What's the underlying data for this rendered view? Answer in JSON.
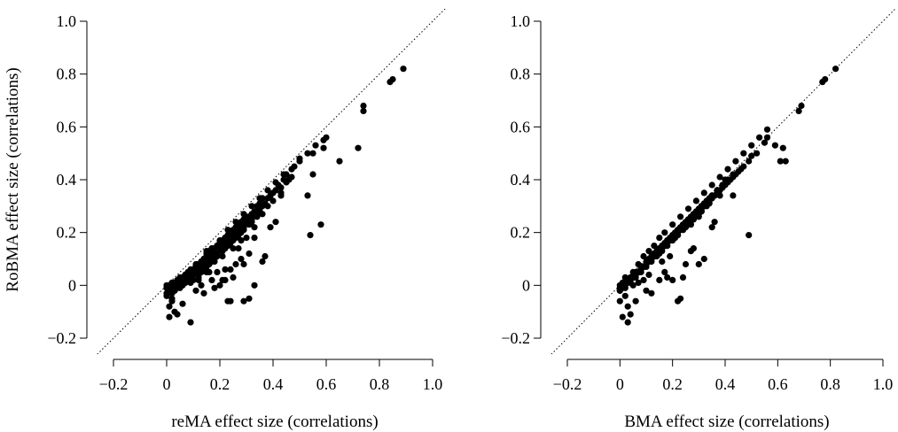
{
  "chart_data": [
    {
      "type": "scatter",
      "title": "",
      "xlabel": "reMA effect size (correlations)",
      "ylabel": "RoBMA effect size (correlations)",
      "xlim": [
        -0.2,
        1.0
      ],
      "ylim": [
        -0.2,
        1.0
      ],
      "xticks": [
        "−0.2",
        "0",
        "0.2",
        "0.4",
        "0.6",
        "0.8",
        "1.0"
      ],
      "yticks": [
        "−0.2",
        "0",
        "0.2",
        "0.4",
        "0.6",
        "0.8",
        "1.0"
      ],
      "reference_line": "identity (dotted)",
      "grid": false,
      "legend": "none",
      "marker_color": "#000000",
      "x": [
        0.89,
        0.85,
        0.84,
        0.74,
        0.74,
        0.72,
        0.6,
        0.59,
        0.65,
        0.55,
        0.55,
        0.5,
        0.54,
        0.48,
        0.47,
        0.45,
        0.45,
        0.44,
        0.43,
        0.43,
        0.42,
        0.41,
        0.4,
        0.4,
        0.39,
        0.38,
        0.37,
        0.36,
        0.35,
        0.34,
        0.33,
        0.32,
        0.3,
        0.29,
        0.28,
        0.27,
        0.26,
        0.25,
        0.24,
        0.23,
        0.22,
        0.21,
        0.2,
        0.19,
        0.18,
        0.17,
        0.16,
        0.15,
        0.14,
        0.13,
        0.12,
        0.11,
        0.1,
        0.09,
        0.08,
        0.07,
        0.06,
        0.05,
        0.04,
        0.03,
        0.02,
        0.01,
        0.0,
        0.35,
        0.34,
        0.32,
        0.31,
        0.3,
        0.29,
        0.27,
        0.26,
        0.25,
        0.24,
        0.22,
        0.21,
        0.2,
        0.19,
        0.18,
        0.17,
        0.16,
        0.15,
        0.14,
        0.13,
        0.12,
        0.11,
        0.1,
        0.09,
        0.08,
        0.07,
        0.06,
        0.05,
        0.04,
        0.03,
        0.02,
        0.33,
        0.31,
        0.29,
        0.28,
        0.26,
        0.25,
        0.23,
        0.22,
        0.2,
        0.19,
        0.17,
        0.16,
        0.15,
        0.14,
        0.13,
        0.12,
        0.11,
        0.1,
        0.09,
        0.08,
        0.07,
        0.06,
        0.05,
        0.04,
        0.03,
        0.02,
        0.01,
        0.3,
        0.28,
        0.27,
        0.25,
        0.24,
        0.22,
        0.21,
        0.2,
        0.18,
        0.17,
        0.16,
        0.15,
        0.14,
        0.13,
        0.12,
        0.11,
        0.1,
        0.09,
        0.08,
        0.07,
        0.06,
        0.05,
        0.04,
        0.03,
        0.02,
        0.01,
        0.0,
        0.58,
        0.53,
        0.46,
        0.43,
        0.41,
        0.39,
        0.37,
        0.36,
        0.36,
        0.33,
        0.31,
        0.29,
        0.28,
        0.27,
        0.26,
        0.25,
        0.24,
        0.23,
        0.22,
        0.21,
        0.2,
        0.19,
        0.18,
        0.17,
        0.16,
        0.15,
        0.14,
        0.13,
        0.12,
        0.11,
        0.1,
        0.09,
        0.08,
        0.07,
        0.06,
        0.05,
        0.04,
        0.03,
        0.02,
        0.01,
        0.0,
        0.0,
        0.01,
        0.02,
        0.03,
        0.05,
        0.07,
        0.09,
        0.11,
        0.13,
        0.15,
        0.17,
        0.2,
        0.23,
        0.26,
        0.29,
        0.32,
        0.35,
        0.38,
        0.41,
        0.44,
        0.47,
        0.5,
        0.53,
        0.56,
        0.59,
        0.35,
        0.32,
        0.29,
        0.26,
        0.23,
        0.2,
        0.17,
        0.14,
        0.11,
        0.08,
        0.05,
        0.02,
        0.38,
        0.33,
        0.3,
        0.28,
        0.25,
        0.22,
        0.19,
        0.16,
        0.13,
        0.1,
        0.07,
        0.04,
        0.01,
        0.36,
        0.33,
        0.31,
        0.29,
        0.27,
        0.24,
        0.21,
        0.18,
        0.15,
        0.12,
        0.09,
        0.06,
        0.03,
        0.12,
        0.13,
        0.14,
        0.15,
        0.16,
        0.17,
        0.18,
        0.19,
        0.21,
        0.22,
        0.23,
        0.24,
        0.25,
        0.26,
        0.27,
        0.28,
        0.29,
        0.31,
        0.32,
        0.34
      ],
      "y": [
        0.82,
        0.78,
        0.77,
        0.68,
        0.66,
        0.52,
        0.56,
        0.52,
        0.47,
        0.5,
        0.42,
        0.47,
        0.19,
        0.45,
        0.41,
        0.42,
        0.39,
        0.4,
        0.37,
        0.34,
        0.38,
        0.36,
        0.35,
        0.32,
        0.34,
        0.33,
        0.31,
        0.3,
        0.29,
        0.28,
        0.27,
        0.26,
        0.26,
        0.25,
        0.24,
        0.23,
        0.22,
        0.21,
        0.2,
        0.19,
        0.18,
        0.17,
        0.16,
        0.15,
        0.14,
        0.13,
        0.12,
        0.11,
        0.1,
        0.09,
        0.08,
        0.07,
        0.06,
        0.05,
        0.04,
        0.03,
        0.02,
        0.02,
        0.01,
        0.01,
        0.0,
        0.0,
        0.0,
        0.31,
        0.3,
        0.27,
        0.26,
        0.25,
        0.24,
        0.22,
        0.21,
        0.2,
        0.19,
        0.18,
        0.17,
        0.16,
        0.15,
        0.14,
        0.13,
        0.12,
        0.11,
        0.1,
        0.09,
        0.08,
        0.07,
        0.06,
        0.05,
        0.04,
        0.03,
        0.02,
        0.01,
        0.01,
        0.0,
        0.0,
        0.28,
        0.26,
        0.24,
        0.23,
        0.21,
        0.2,
        0.19,
        0.17,
        0.16,
        0.15,
        0.14,
        0.13,
        0.11,
        0.1,
        0.09,
        0.08,
        0.07,
        0.06,
        0.05,
        0.04,
        0.04,
        0.03,
        0.02,
        0.01,
        0.0,
        0.0,
        -0.01,
        0.24,
        0.22,
        0.21,
        0.19,
        0.18,
        0.16,
        0.15,
        0.14,
        0.12,
        0.11,
        0.1,
        0.09,
        0.08,
        0.07,
        0.06,
        0.05,
        0.04,
        0.03,
        0.02,
        0.01,
        0.0,
        -0.01,
        -0.01,
        -0.02,
        -0.03,
        -0.02,
        -0.01,
        0.23,
        0.34,
        0.4,
        0.35,
        0.24,
        0.22,
        0.11,
        0.09,
        0.33,
        0.0,
        -0.05,
        -0.06,
        0.1,
        0.14,
        0.08,
        0.03,
        -0.06,
        -0.06,
        0.02,
        0.11,
        0.0,
        0.05,
        0.09,
        0.02,
        0.05,
        0.12,
        -0.03,
        0.0,
        0.04,
        -0.02,
        0.02,
        0.06,
        0.04,
        0.01,
        -0.07,
        0.0,
        -0.11,
        -0.1,
        -0.05,
        -0.08,
        -0.04,
        -0.03,
        -0.12,
        -0.06,
        -0.02,
        0.01,
        0.03,
        -0.14,
        0.06,
        0.08,
        0.13,
        0.14,
        0.17,
        0.21,
        0.24,
        0.27,
        0.3,
        0.33,
        0.36,
        0.39,
        0.42,
        0.44,
        0.48,
        0.5,
        0.53,
        0.55,
        0.28,
        0.25,
        0.22,
        0.2,
        0.17,
        0.15,
        0.12,
        0.1,
        0.08,
        0.05,
        0.03,
        0.01,
        0.3,
        0.22,
        0.18,
        0.17,
        0.14,
        0.06,
        0.12,
        0.09,
        0.07,
        0.05,
        0.04,
        0.02,
        0.0,
        0.27,
        0.18,
        0.12,
        0.08,
        0.2,
        0.06,
        0.02,
        -0.01,
        0.05,
        0.02,
        0.01,
        0.0,
        -0.01,
        0.03,
        0.05,
        0.06,
        0.07,
        0.08,
        0.09,
        0.1,
        0.11,
        0.13,
        0.14,
        0.15,
        0.16,
        0.17,
        0.18,
        0.19,
        0.2,
        0.21,
        0.23,
        0.24,
        0.26
      ]
    },
    {
      "type": "scatter",
      "title": "",
      "xlabel": "BMA effect size (correlations)",
      "ylabel": "",
      "xlim": [
        -0.2,
        1.0
      ],
      "ylim": [
        -0.2,
        1.0
      ],
      "xticks": [
        "−0.2",
        "0",
        "0.2",
        "0.4",
        "0.6",
        "0.8",
        "1.0"
      ],
      "yticks": [
        "−0.2",
        "0",
        "0.2",
        "0.4",
        "0.6",
        "0.8",
        "1.0"
      ],
      "reference_line": "identity (dotted)",
      "grid": false,
      "legend": "none",
      "marker_color": "#000000",
      "x": [
        0.82,
        0.78,
        0.77,
        0.69,
        0.68,
        0.62,
        0.56,
        0.55,
        0.61,
        0.52,
        0.5,
        0.49,
        0.47,
        0.46,
        0.45,
        0.44,
        0.43,
        0.42,
        0.41,
        0.4,
        0.39,
        0.38,
        0.37,
        0.36,
        0.35,
        0.34,
        0.33,
        0.32,
        0.31,
        0.3,
        0.29,
        0.28,
        0.27,
        0.26,
        0.25,
        0.24,
        0.23,
        0.22,
        0.21,
        0.2,
        0.19,
        0.18,
        0.17,
        0.16,
        0.15,
        0.14,
        0.13,
        0.12,
        0.11,
        0.1,
        0.09,
        0.08,
        0.07,
        0.06,
        0.05,
        0.04,
        0.03,
        0.02,
        0.01,
        0.0,
        0.36,
        0.34,
        0.32,
        0.3,
        0.28,
        0.26,
        0.24,
        0.22,
        0.2,
        0.18,
        0.16,
        0.14,
        0.12,
        0.1,
        0.08,
        0.06,
        0.04,
        0.02,
        0.0,
        0.33,
        0.31,
        0.29,
        0.27,
        0.25,
        0.23,
        0.21,
        0.19,
        0.17,
        0.15,
        0.13,
        0.11,
        0.09,
        0.07,
        0.05,
        0.03,
        0.01,
        0.3,
        0.28,
        0.26,
        0.24,
        0.22,
        0.2,
        0.18,
        0.16,
        0.14,
        0.12,
        0.1,
        0.08,
        0.06,
        0.04,
        0.02,
        0.49,
        0.43,
        0.4,
        0.38,
        0.36,
        0.35,
        0.32,
        0.3,
        0.28,
        0.27,
        0.25,
        0.24,
        0.23,
        0.22,
        0.2,
        0.19,
        0.18,
        0.17,
        0.16,
        0.15,
        0.13,
        0.12,
        0.11,
        0.1,
        0.09,
        0.08,
        0.07,
        0.06,
        0.05,
        0.04,
        0.03,
        0.02,
        0.01,
        0.0,
        0.0,
        0.01,
        0.02,
        0.03,
        0.05,
        0.07,
        0.09,
        0.11,
        0.13,
        0.15,
        0.17,
        0.2,
        0.23,
        0.26,
        0.29,
        0.32,
        0.35,
        0.38,
        0.41,
        0.44,
        0.47,
        0.5,
        0.53,
        0.56,
        0.59,
        0.63,
        0.34,
        0.31,
        0.28,
        0.25,
        0.22,
        0.19,
        0.16,
        0.13,
        0.1,
        0.07,
        0.04,
        0.01,
        0.12,
        0.14,
        0.16,
        0.18,
        0.2,
        0.22,
        0.24,
        0.26,
        0.28,
        0.3,
        0.32,
        0.34,
        0.37,
        0.39,
        0.41,
        0.43,
        0.3,
        0.27,
        0.24,
        0.21,
        0.18,
        0.15,
        0.12,
        0.09,
        0.06,
        0.03,
        0.0,
        0.02,
        0.04,
        0.06,
        0.08,
        0.1,
        0.12,
        0.14,
        0.16,
        0.18,
        0.2,
        0.22,
        0.24,
        0.26,
        0.28,
        0.31,
        0.33,
        0.35,
        0.37,
        0.39,
        0.11,
        0.13,
        0.15,
        0.17,
        0.19,
        0.21,
        0.23,
        0.25,
        0.27,
        0.29,
        0.31,
        0.33,
        0.35,
        0.37
      ],
      "y": [
        0.82,
        0.78,
        0.77,
        0.68,
        0.66,
        0.52,
        0.56,
        0.54,
        0.47,
        0.5,
        0.49,
        0.47,
        0.45,
        0.44,
        0.43,
        0.42,
        0.41,
        0.4,
        0.39,
        0.38,
        0.37,
        0.36,
        0.35,
        0.34,
        0.33,
        0.32,
        0.31,
        0.3,
        0.29,
        0.28,
        0.27,
        0.26,
        0.25,
        0.24,
        0.23,
        0.22,
        0.21,
        0.2,
        0.19,
        0.18,
        0.17,
        0.16,
        0.15,
        0.14,
        0.13,
        0.12,
        0.11,
        0.1,
        0.09,
        0.08,
        0.07,
        0.06,
        0.05,
        0.04,
        0.03,
        0.02,
        0.02,
        0.01,
        0.0,
        -0.01,
        0.34,
        0.32,
        0.3,
        0.28,
        0.26,
        0.24,
        0.22,
        0.2,
        0.18,
        0.16,
        0.14,
        0.12,
        0.1,
        0.08,
        0.06,
        0.04,
        0.02,
        0.0,
        -0.02,
        0.3,
        0.28,
        0.27,
        0.25,
        0.23,
        0.21,
        0.19,
        0.17,
        0.15,
        0.13,
        0.11,
        0.09,
        0.07,
        0.05,
        0.03,
        0.01,
        -0.01,
        0.27,
        0.25,
        0.23,
        0.21,
        0.19,
        0.17,
        0.15,
        0.13,
        0.11,
        0.09,
        0.07,
        0.05,
        0.03,
        0.01,
        -0.01,
        0.19,
        0.34,
        0.4,
        0.34,
        0.24,
        0.22,
        0.1,
        0.08,
        0.14,
        0.13,
        0.08,
        0.03,
        -0.05,
        -0.06,
        0.02,
        0.11,
        0.03,
        0.05,
        0.09,
        0.02,
        0.12,
        -0.03,
        0.04,
        -0.02,
        0.02,
        0.06,
        0.01,
        -0.06,
        0.0,
        -0.11,
        -0.08,
        -0.04,
        -0.12,
        -0.06,
        0.0,
        0.01,
        0.03,
        -0.14,
        0.05,
        0.08,
        0.11,
        0.13,
        0.15,
        0.18,
        0.2,
        0.23,
        0.26,
        0.29,
        0.32,
        0.35,
        0.38,
        0.41,
        0.44,
        0.47,
        0.5,
        0.53,
        0.56,
        0.59,
        0.53,
        0.47,
        0.31,
        0.28,
        0.25,
        0.22,
        0.19,
        0.17,
        0.14,
        0.11,
        0.08,
        0.05,
        0.03,
        0.0,
        0.11,
        0.13,
        0.15,
        0.17,
        0.19,
        0.21,
        0.23,
        0.25,
        0.27,
        0.29,
        0.31,
        0.33,
        0.36,
        0.38,
        0.4,
        0.42,
        0.26,
        0.23,
        0.21,
        0.18,
        0.15,
        0.12,
        0.1,
        0.07,
        0.04,
        0.02,
        -0.02,
        0.01,
        0.03,
        0.05,
        0.07,
        0.09,
        0.11,
        0.13,
        0.15,
        0.17,
        0.19,
        0.21,
        0.23,
        0.25,
        0.27,
        0.3,
        0.32,
        0.34,
        0.36,
        0.38,
        0.1,
        0.12,
        0.14,
        0.16,
        0.18,
        0.2,
        0.22,
        0.24,
        0.26,
        0.28,
        0.3,
        0.32,
        0.34,
        0.36
      ]
    }
  ]
}
